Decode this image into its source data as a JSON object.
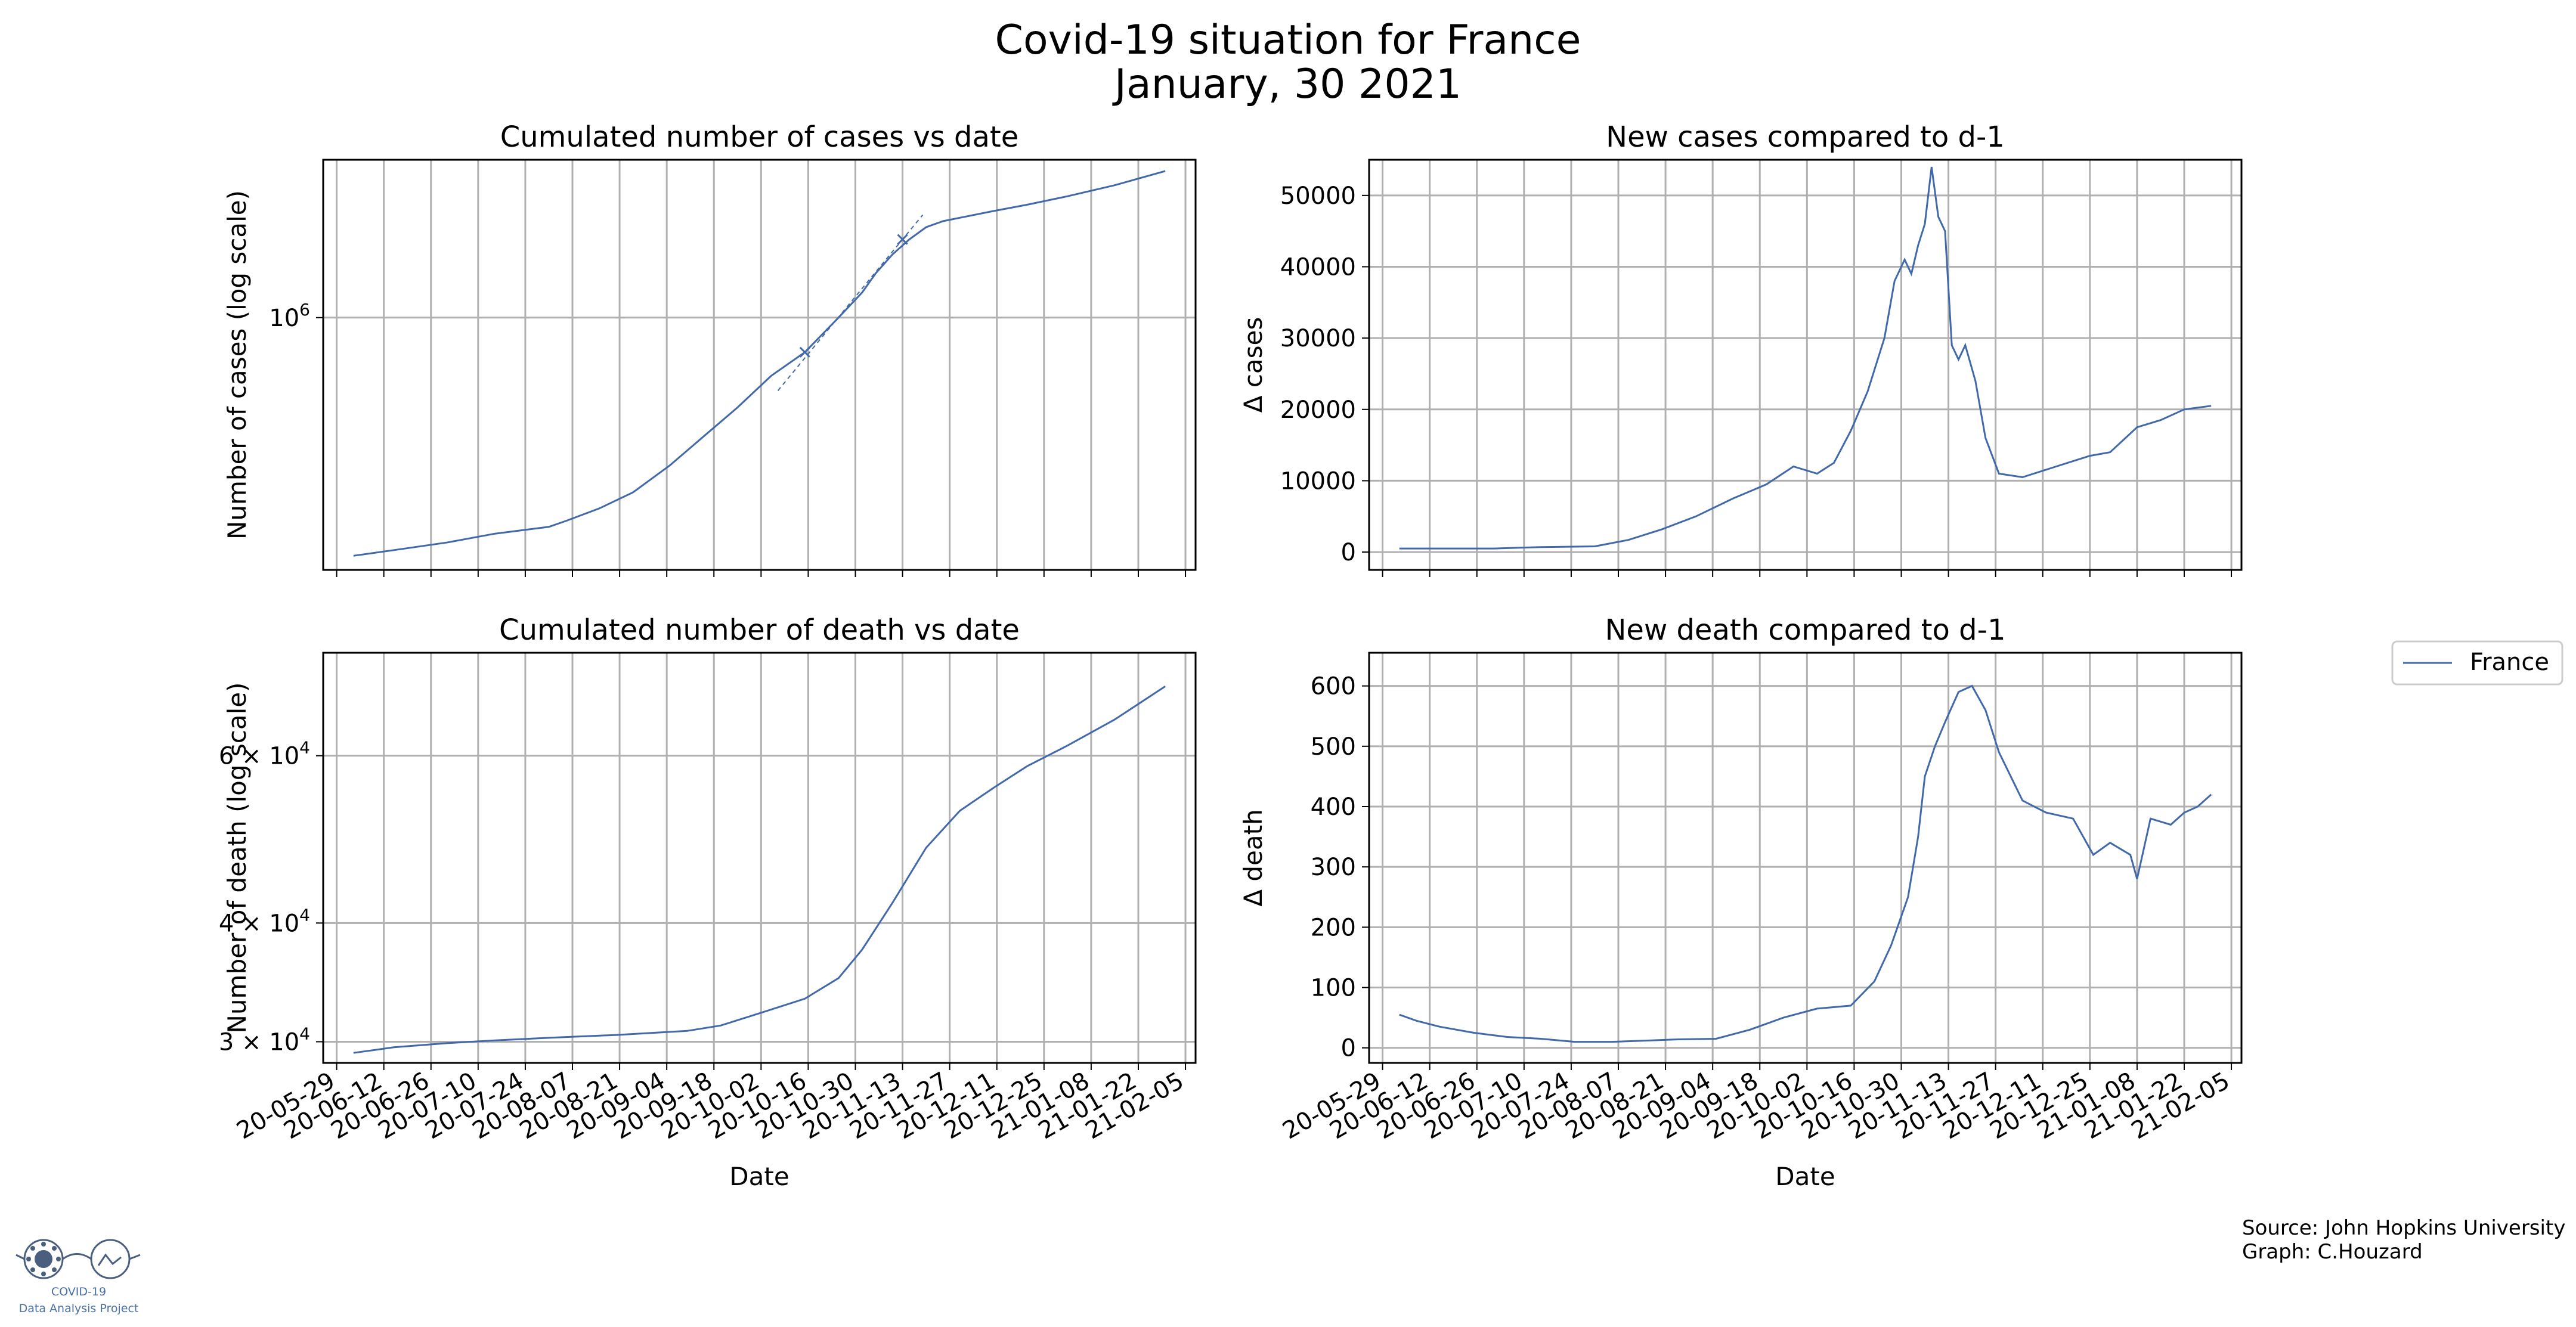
{
  "figure": {
    "title_line1": "Covid-19 situation for France",
    "title_line2": "January, 30 2021",
    "source_line": "Source: John Hopkins University",
    "graph_line": "Graph: C.Houzard",
    "logo_text_line1": "COVID-19",
    "logo_text_line2": "Data Analysis Project",
    "logo_icon": "virus-and-glasses-logo"
  },
  "legend": {
    "label": "France",
    "color": "#4169aa",
    "placement": "right-middle"
  },
  "colors": {
    "line": "#4169aa",
    "grid": "#b0b0b0"
  },
  "date_ticks": [
    "20-05-29",
    "20-06-12",
    "20-06-26",
    "20-07-10",
    "20-07-24",
    "20-08-07",
    "20-08-21",
    "20-09-04",
    "20-09-18",
    "20-10-02",
    "20-10-16",
    "20-10-30",
    "20-11-13",
    "20-11-27",
    "20-12-11",
    "20-12-25",
    "21-01-08",
    "21-01-22",
    "21-02-05"
  ],
  "chart_data": [
    {
      "id": "cases_cum",
      "type": "line",
      "title": "Cumulated number of cases vs date",
      "xlabel": "",
      "ylabel": "Number of cases (log scale)",
      "yscale": "log",
      "ylim": [
        135000,
        3500000
      ],
      "xlim": [
        "2020-05-25",
        "2021-02-08"
      ],
      "grid": true,
      "yticks": [
        1000000
      ],
      "ytick_labels": [
        "10^6"
      ],
      "series": [
        {
          "name": "France",
          "x": [
            "2020-06-03",
            "2020-06-15",
            "2020-07-01",
            "2020-07-15",
            "2020-07-31",
            "2020-08-05",
            "2020-08-15",
            "2020-08-25",
            "2020-09-05",
            "2020-09-15",
            "2020-09-25",
            "2020-10-05",
            "2020-10-15",
            "2020-10-25",
            "2020-11-01",
            "2020-11-05",
            "2020-11-10",
            "2020-11-15",
            "2020-11-20",
            "2020-11-25",
            "2020-12-01",
            "2020-12-10",
            "2020-12-20",
            "2021-01-01",
            "2021-01-15",
            "2021-01-30"
          ],
          "y": [
            151000,
            158000,
            168000,
            180000,
            190000,
            199000,
            220000,
            250000,
            310000,
            390000,
            490000,
            630000,
            760000,
            1000000,
            1220000,
            1420000,
            1650000,
            1860000,
            2050000,
            2150000,
            2220000,
            2330000,
            2450000,
            2620000,
            2860000,
            3200000
          ]
        }
      ],
      "annotations": [
        {
          "kind": "dashed-fit",
          "x": [
            "2020-10-07",
            "2020-11-19"
          ],
          "y": [
            560000,
            2260000
          ]
        },
        {
          "kind": "marker",
          "x": "2020-10-15",
          "y": 760000
        },
        {
          "kind": "marker",
          "x": "2020-11-13",
          "y": 1860000
        }
      ]
    },
    {
      "id": "cases_new",
      "type": "line",
      "title": "New cases compared to d-1",
      "xlabel": "",
      "ylabel": "Δ cases",
      "ylim": [
        -2500,
        55000
      ],
      "xlim": [
        "2020-05-25",
        "2021-02-08"
      ],
      "grid": true,
      "yticks": [
        0,
        10000,
        20000,
        30000,
        40000,
        50000
      ],
      "ytick_labels": [
        "0",
        "10000",
        "20000",
        "30000",
        "40000",
        "50000"
      ],
      "series": [
        {
          "name": "France",
          "x": [
            "2020-06-03",
            "2020-06-15",
            "2020-07-01",
            "2020-07-15",
            "2020-07-31",
            "2020-08-10",
            "2020-08-20",
            "2020-08-30",
            "2020-09-10",
            "2020-09-20",
            "2020-09-28",
            "2020-10-05",
            "2020-10-10",
            "2020-10-15",
            "2020-10-20",
            "2020-10-25",
            "2020-10-28",
            "2020-10-31",
            "2020-11-02",
            "2020-11-04",
            "2020-11-06",
            "2020-11-08",
            "2020-11-10",
            "2020-11-12",
            "2020-11-14",
            "2020-11-16",
            "2020-11-18",
            "2020-11-21",
            "2020-11-24",
            "2020-11-28",
            "2020-12-05",
            "2020-12-15",
            "2020-12-25",
            "2020-12-31",
            "2021-01-08",
            "2021-01-15",
            "2021-01-22",
            "2021-01-30"
          ],
          "y": [
            500,
            500,
            500,
            700,
            800,
            1700,
            3200,
            5000,
            7500,
            9500,
            12000,
            11000,
            12500,
            17000,
            22500,
            30000,
            38000,
            41000,
            39000,
            43000,
            46000,
            54000,
            47000,
            45000,
            29000,
            27000,
            29000,
            24000,
            16000,
            11000,
            10500,
            12000,
            13500,
            14000,
            17500,
            18500,
            20000,
            20500
          ]
        }
      ]
    },
    {
      "id": "death_cum",
      "type": "line",
      "title": "Cumulated number of death vs date",
      "xlabel": "Date",
      "ylabel": "Number of death (log scale)",
      "yscale": "log",
      "ylim": [
        28500,
        77000
      ],
      "xlim": [
        "2020-05-25",
        "2021-02-08"
      ],
      "grid": true,
      "yticks": [
        30000,
        40000,
        60000
      ],
      "ytick_labels": [
        "3 × 10^4",
        "4 × 10^4",
        "6 × 10^4"
      ],
      "series": [
        {
          "name": "France",
          "x": [
            "2020-06-03",
            "2020-06-15",
            "2020-07-01",
            "2020-07-15",
            "2020-08-01",
            "2020-08-20",
            "2020-09-10",
            "2020-09-20",
            "2020-10-01",
            "2020-10-15",
            "2020-10-25",
            "2020-11-01",
            "2020-11-10",
            "2020-11-20",
            "2020-11-30",
            "2020-12-10",
            "2020-12-20",
            "2021-01-01",
            "2021-01-15",
            "2021-01-30"
          ],
          "y": [
            29200,
            29600,
            29900,
            30100,
            30300,
            30500,
            30800,
            31200,
            32100,
            33300,
            35000,
            37500,
            42000,
            48000,
            52500,
            55500,
            58500,
            61500,
            65500,
            71000
          ]
        }
      ]
    },
    {
      "id": "death_new",
      "type": "line",
      "title": "New death compared to d-1",
      "xlabel": "Date",
      "ylabel": "Δ death",
      "ylim": [
        -25,
        655
      ],
      "xlim": [
        "2020-05-25",
        "2021-02-08"
      ],
      "grid": true,
      "yticks": [
        0,
        100,
        200,
        300,
        400,
        500,
        600
      ],
      "ytick_labels": [
        "0",
        "100",
        "200",
        "300",
        "400",
        "500",
        "600"
      ],
      "series": [
        {
          "name": "France",
          "x": [
            "2020-06-03",
            "2020-06-08",
            "2020-06-15",
            "2020-06-25",
            "2020-07-05",
            "2020-07-15",
            "2020-07-25",
            "2020-08-05",
            "2020-08-15",
            "2020-08-25",
            "2020-09-05",
            "2020-09-15",
            "2020-09-25",
            "2020-10-05",
            "2020-10-15",
            "2020-10-22",
            "2020-10-27",
            "2020-11-01",
            "2020-11-04",
            "2020-11-06",
            "2020-11-09",
            "2020-11-12",
            "2020-11-16",
            "2020-11-20",
            "2020-11-24",
            "2020-11-28",
            "2020-12-05",
            "2020-12-12",
            "2020-12-20",
            "2020-12-26",
            "2020-12-31",
            "2021-01-06",
            "2021-01-08",
            "2021-01-12",
            "2021-01-18",
            "2021-01-22",
            "2021-01-26",
            "2021-01-30"
          ],
          "y": [
            55,
            45,
            35,
            25,
            18,
            15,
            10,
            10,
            12,
            14,
            15,
            30,
            50,
            65,
            70,
            110,
            170,
            250,
            350,
            450,
            500,
            540,
            590,
            600,
            560,
            490,
            410,
            390,
            380,
            320,
            340,
            320,
            280,
            380,
            370,
            390,
            400,
            420
          ]
        }
      ]
    }
  ]
}
